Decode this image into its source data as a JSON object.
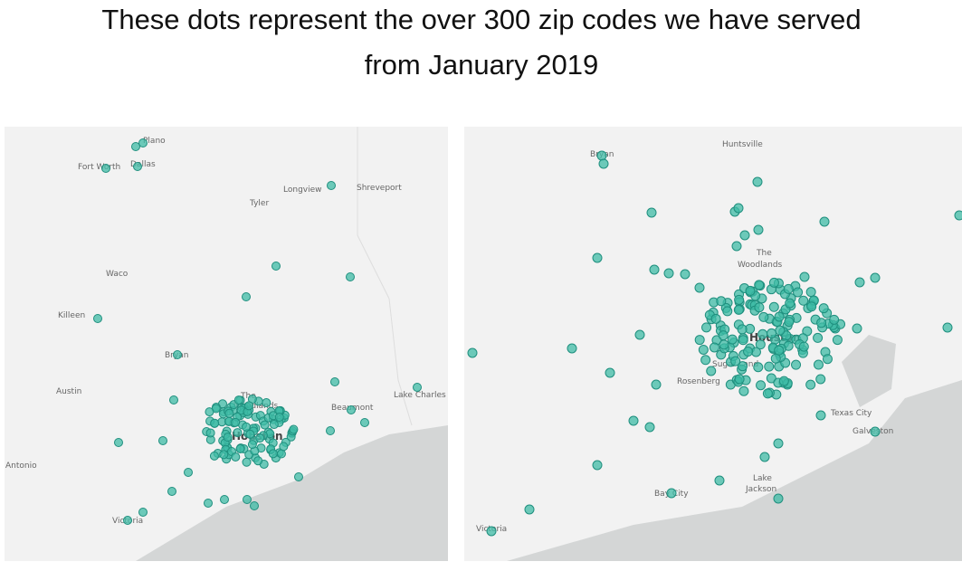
{
  "title": [
    "These dots represent the over 300 zip codes we have served",
    "from January 2019"
  ],
  "maps": [
    {
      "labels": [
        "Plano",
        "Fort Worth",
        "Dallas",
        "Longview",
        "Shreveport",
        "Tyler",
        "Waco",
        "Killeen",
        "Bryan",
        "Austin",
        "The",
        "Woodlands",
        "Beaumont",
        "Lake Charles",
        "Houston",
        "Antonio",
        "Victoria"
      ]
    },
    {
      "labels": [
        "Huntsville",
        "Bryan",
        "The",
        "Woodlands",
        "Houston",
        "Sugar Land",
        "Rosenberg",
        "Texas City",
        "Galveston",
        "Lake",
        "Jackson",
        "Bay City",
        "Victoria"
      ]
    }
  ]
}
